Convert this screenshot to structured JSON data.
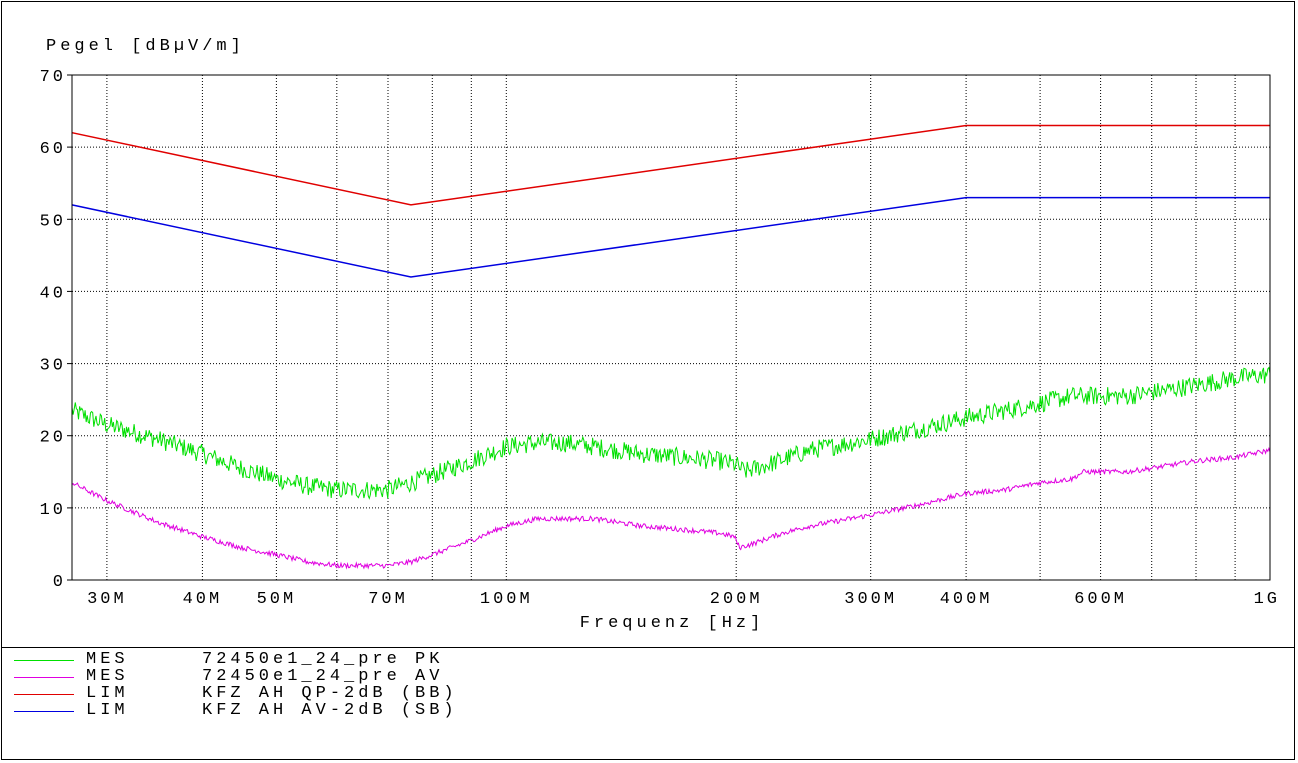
{
  "chart_data": {
    "type": "line",
    "ylabel": "Pegel [dBµV/m]",
    "xlabel": "Frequenz [Hz]",
    "x_scale": "log",
    "xlim": [
      27000000,
      1000000000
    ],
    "ylim": [
      0,
      70
    ],
    "grid": true,
    "y_ticks": [
      0,
      10,
      20,
      30,
      40,
      50,
      60,
      70
    ],
    "y_tick_labels": [
      "0",
      "10",
      "20",
      "30",
      "40",
      "50",
      "60",
      "70"
    ],
    "x_tick_labels": [
      {
        "value": 30000000,
        "label": "30M"
      },
      {
        "value": 40000000,
        "label": "40M"
      },
      {
        "value": 50000000,
        "label": "50M"
      },
      {
        "value": 70000000,
        "label": "70M"
      },
      {
        "value": 100000000,
        "label": "100M"
      },
      {
        "value": 200000000,
        "label": "200M"
      },
      {
        "value": 300000000,
        "label": "300M"
      },
      {
        "value": 400000000,
        "label": "400M"
      },
      {
        "value": 600000000,
        "label": "600M"
      },
      {
        "value": 1000000000,
        "label": "1G"
      }
    ],
    "x_gridlines": [
      30000000,
      40000000,
      50000000,
      60000000,
      70000000,
      80000000,
      90000000,
      100000000,
      200000000,
      300000000,
      400000000,
      500000000,
      600000000,
      700000000,
      800000000,
      900000000
    ],
    "series": [
      {
        "kind": "MES",
        "name": "72450e1_24_pre PK",
        "color": "#00e000",
        "x": [
          27000000,
          30000000,
          35000000,
          40000000,
          45000000,
          50000000,
          55000000,
          60000000,
          65000000,
          70000000,
          75000000,
          80000000,
          90000000,
          100000000,
          110000000,
          120000000,
          130000000,
          150000000,
          170000000,
          190000000,
          200000000,
          205000000,
          220000000,
          250000000,
          300000000,
          350000000,
          400000000,
          450000000,
          500000000,
          550000000,
          600000000,
          650000000,
          700000000,
          800000000,
          900000000,
          1000000000
        ],
        "y": [
          23.5,
          21.5,
          19.5,
          17.5,
          15.5,
          14.0,
          13.0,
          12.5,
          12.5,
          12.5,
          13.5,
          14.5,
          16.5,
          18.5,
          19.0,
          19.0,
          18.5,
          17.5,
          17.0,
          16.5,
          16.0,
          15.0,
          16.0,
          18.0,
          19.5,
          21.0,
          22.5,
          23.5,
          24.5,
          25.5,
          25.5,
          25.5,
          26.0,
          27.0,
          28.0,
          28.5
        ]
      },
      {
        "kind": "MES",
        "name": "72450e1_24_pre AV",
        "color": "#e000e0",
        "x": [
          27000000,
          30000000,
          35000000,
          40000000,
          45000000,
          50000000,
          55000000,
          60000000,
          65000000,
          70000000,
          75000000,
          80000000,
          90000000,
          100000000,
          110000000,
          120000000,
          130000000,
          150000000,
          170000000,
          190000000,
          199000000,
          202000000,
          210000000,
          230000000,
          250000000,
          300000000,
          350000000,
          400000000,
          450000000,
          500000000,
          550000000,
          570000000,
          600000000,
          650000000,
          700000000,
          800000000,
          900000000,
          1000000000
        ],
        "y": [
          13.5,
          11.0,
          8.0,
          6.0,
          4.5,
          3.5,
          2.5,
          2.0,
          2.0,
          2.0,
          2.5,
          3.5,
          5.5,
          7.5,
          8.5,
          8.5,
          8.5,
          7.5,
          7.0,
          6.5,
          6.0,
          4.5,
          5.0,
          6.5,
          7.5,
          9.0,
          10.5,
          12.0,
          12.5,
          13.5,
          14.0,
          15.0,
          15.0,
          15.0,
          15.5,
          16.5,
          17.0,
          18.0
        ]
      },
      {
        "kind": "LIM",
        "name": "KFZ AH QP-2dB (BB)",
        "color": "#e00000",
        "x": [
          27000000,
          75000000,
          400000000,
          1000000000
        ],
        "y": [
          62,
          52,
          63,
          63
        ]
      },
      {
        "kind": "LIM",
        "name": "KFZ AH AV-2dB (SB)",
        "color": "#0000e0",
        "x": [
          27000000,
          75000000,
          400000000,
          1000000000
        ],
        "y": [
          52,
          42,
          53,
          53
        ]
      }
    ]
  }
}
